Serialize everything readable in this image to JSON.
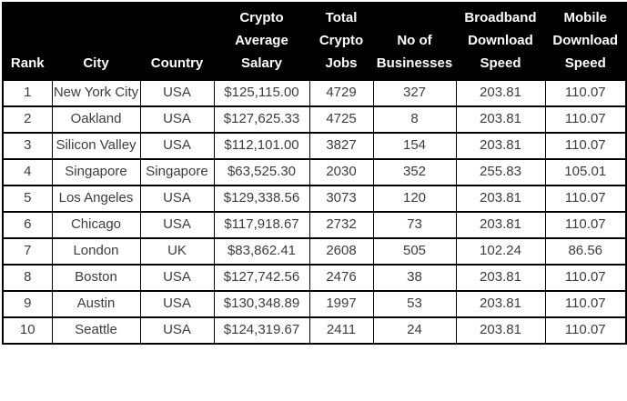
{
  "colors": {
    "header_bg": "#000000",
    "header_text": "#ffffff",
    "body_text": "#3d3d3d",
    "border": "#000000",
    "body_bg": "#ffffff"
  },
  "chart_data": {
    "type": "table",
    "columns": [
      {
        "label": "Rank",
        "label_lines": [
          "Rank"
        ]
      },
      {
        "label": "City",
        "label_lines": [
          "City"
        ]
      },
      {
        "label": "Country",
        "label_lines": [
          "Country"
        ]
      },
      {
        "label": "Crypto Average Salary",
        "label_lines": [
          "Crypto",
          "Average",
          "Salary"
        ]
      },
      {
        "label": "Total Crypto Jobs",
        "label_lines": [
          "Total",
          "Crypto",
          "Jobs"
        ]
      },
      {
        "label": "No of Businesses",
        "label_lines": [
          "No of",
          "Businesses"
        ]
      },
      {
        "label": "Broadband Download Speed",
        "label_lines": [
          "Broadband",
          "Download",
          "Speed"
        ]
      },
      {
        "label": "Mobile Download Speed",
        "label_lines": [
          "Mobile",
          "Download",
          "Speed"
        ]
      }
    ],
    "rows": [
      [
        "1",
        "New York City",
        "USA",
        "$125,115.00",
        "4729",
        "327",
        "203.81",
        "110.07"
      ],
      [
        "2",
        "Oakland",
        "USA",
        "$127,625.33",
        "4725",
        "8",
        "203.81",
        "110.07"
      ],
      [
        "3",
        "Silicon Valley",
        "USA",
        "$112,101.00",
        "3827",
        "154",
        "203.81",
        "110.07"
      ],
      [
        "4",
        "Singapore",
        "Singapore",
        "$63,525.30",
        "2030",
        "352",
        "255.83",
        "105.01"
      ],
      [
        "5",
        "Los Angeles",
        "USA",
        "$129,338.56",
        "3073",
        "120",
        "203.81",
        "110.07"
      ],
      [
        "6",
        "Chicago",
        "USA",
        "$117,918.67",
        "2732",
        "73",
        "203.81",
        "110.07"
      ],
      [
        "7",
        "London",
        "UK",
        "$83,862.41",
        "2608",
        "505",
        "102.24",
        "86.56"
      ],
      [
        "8",
        "Boston",
        "USA",
        "$127,742.56",
        "2476",
        "38",
        "203.81",
        "110.07"
      ],
      [
        "9",
        "Austin",
        "USA",
        "$130,348.89",
        "1997",
        "53",
        "203.81",
        "110.07"
      ],
      [
        "10",
        "Seattle",
        "USA",
        "$124,319.67",
        "2411",
        "24",
        "203.81",
        "110.07"
      ]
    ]
  }
}
